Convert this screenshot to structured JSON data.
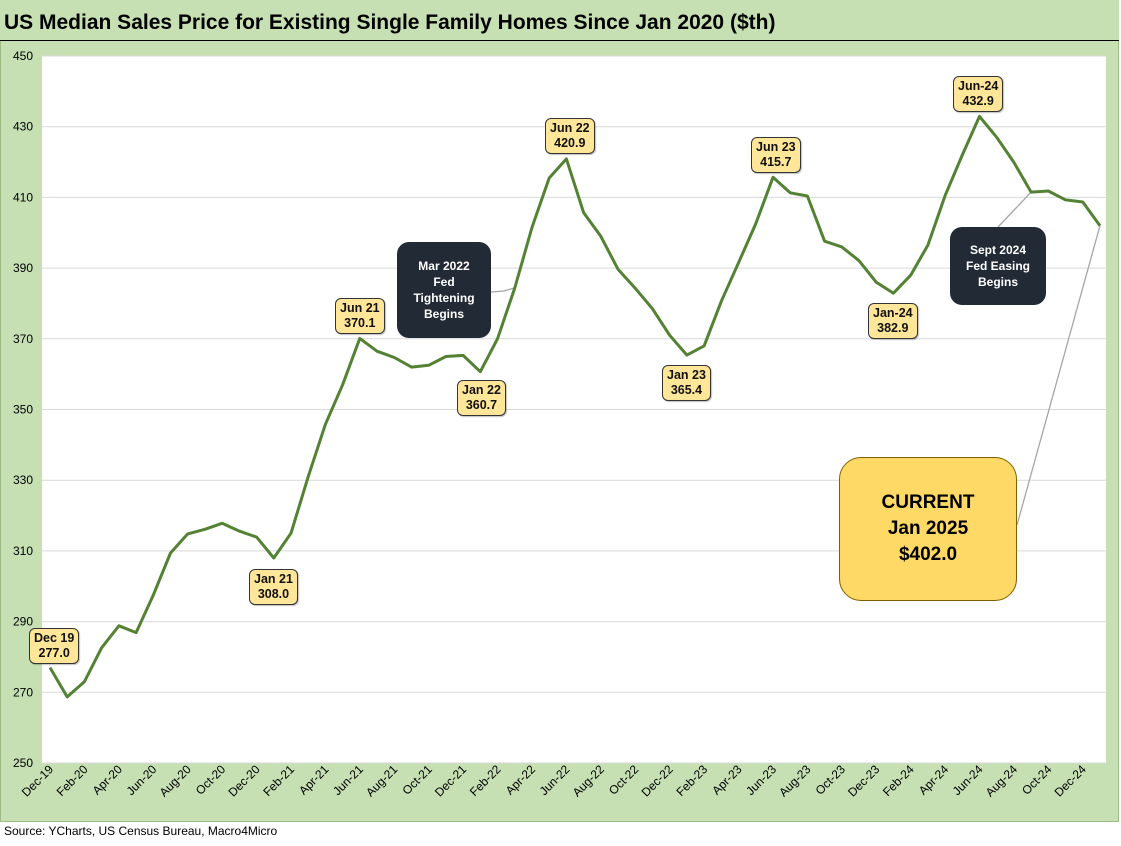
{
  "title": "US Median Sales Price for Existing Single Family Homes Since Jan 2020 ($th)",
  "source": "Source: YCharts, US Census Bureau, Macro4Micro",
  "chart_data": {
    "type": "line",
    "title": "US Median Sales Price for Existing Single Family Homes Since Jan 2020 ($th)",
    "xlabel": "",
    "ylabel": "",
    "ylim": [
      250,
      450
    ],
    "yticks": [
      250,
      270,
      290,
      310,
      330,
      350,
      370,
      390,
      410,
      430,
      450
    ],
    "grid": true,
    "line_color": "#548235",
    "x_tick_labels": [
      "Dec-19",
      "Feb-20",
      "Apr-20",
      "Jun-20",
      "Aug-20",
      "Oct-20",
      "Dec-20",
      "Feb-21",
      "Apr-21",
      "Jun-21",
      "Aug-21",
      "Oct-21",
      "Dec-21",
      "Feb-22",
      "Apr-22",
      "Jun-22",
      "Aug-22",
      "Oct-22",
      "Dec-22",
      "Feb-23",
      "Apr-23",
      "Jun-23",
      "Aug-23",
      "Oct-23",
      "Dec-23",
      "Feb-24",
      "Apr-24",
      "Jun-24",
      "Aug-24",
      "Oct-24",
      "Dec-24"
    ],
    "x": [
      "Dec-19",
      "Jan-20",
      "Feb-20",
      "Mar-20",
      "Apr-20",
      "May-20",
      "Jun-20",
      "Jul-20",
      "Aug-20",
      "Sep-20",
      "Oct-20",
      "Nov-20",
      "Dec-20",
      "Jan-21",
      "Feb-21",
      "Mar-21",
      "Apr-21",
      "May-21",
      "Jun-21",
      "Jul-21",
      "Aug-21",
      "Sep-21",
      "Oct-21",
      "Nov-21",
      "Dec-21",
      "Jan-22",
      "Feb-22",
      "Mar-22",
      "Apr-22",
      "May-22",
      "Jun-22",
      "Jul-22",
      "Aug-22",
      "Sep-22",
      "Oct-22",
      "Nov-22",
      "Dec-22",
      "Jan-23",
      "Feb-23",
      "Mar-23",
      "Apr-23",
      "May-23",
      "Jun-23",
      "Jul-23",
      "Aug-23",
      "Sep-23",
      "Oct-23",
      "Nov-23",
      "Dec-23",
      "Jan-24",
      "Feb-24",
      "Mar-24",
      "Apr-24",
      "May-24",
      "Jun-24",
      "Jul-24",
      "Aug-24",
      "Sep-24",
      "Oct-24",
      "Nov-24",
      "Dec-24",
      "Jan-25"
    ],
    "series": [
      {
        "values": [
          277.0,
          268.7,
          273.0,
          282.6,
          288.8,
          286.9,
          297.5,
          309.4,
          314.8,
          316.1,
          317.8,
          315.6,
          313.9,
          308.0,
          315.0,
          331.0,
          345.8,
          357.0,
          370.1,
          366.5,
          364.7,
          362.0,
          362.5,
          365.0,
          365.3,
          360.7,
          370.0,
          384.4,
          401.5,
          415.5,
          420.9,
          405.7,
          399.0,
          389.7,
          384.3,
          378.5,
          371.0,
          365.4,
          368.0,
          380.6,
          391.5,
          402.5,
          415.7,
          411.3,
          410.4,
          397.6,
          396.0,
          392.1,
          386.0,
          382.9,
          388.0,
          396.5,
          410.5,
          422.0,
          432.9,
          427.0,
          419.9,
          411.5,
          411.8,
          409.3,
          408.7,
          402.0
        ]
      }
    ],
    "annotations": [
      {
        "label": "Dec 19",
        "value": "277.0"
      },
      {
        "label": "Jan 21",
        "value": "308.0"
      },
      {
        "label": "Jun 21",
        "value": "370.1"
      },
      {
        "label": "Jan 22",
        "value": "360.7"
      },
      {
        "label": "Jun 22",
        "value": "420.9"
      },
      {
        "label": "Jan 23",
        "value": "365.4"
      },
      {
        "label": "Jun 23",
        "value": "415.7"
      },
      {
        "label": "Jan-24",
        "value": "382.9"
      },
      {
        "label": "Jun-24",
        "value": "432.9"
      }
    ],
    "callouts": {
      "fed_tightening": [
        "Mar 2022",
        "Fed",
        "Tightening",
        "Begins"
      ],
      "fed_easing": [
        "Sept 2024",
        "Fed Easing",
        "Begins"
      ],
      "current": [
        "CURRENT",
        "Jan 2025",
        "$402.0"
      ]
    }
  },
  "colors": {
    "panel_background": "#c6e0b4",
    "plot_background": "#ffffff",
    "line": "#548235",
    "label_fill": "#ffe699",
    "current_fill": "#ffd966",
    "dark_callout": "#222a35"
  }
}
